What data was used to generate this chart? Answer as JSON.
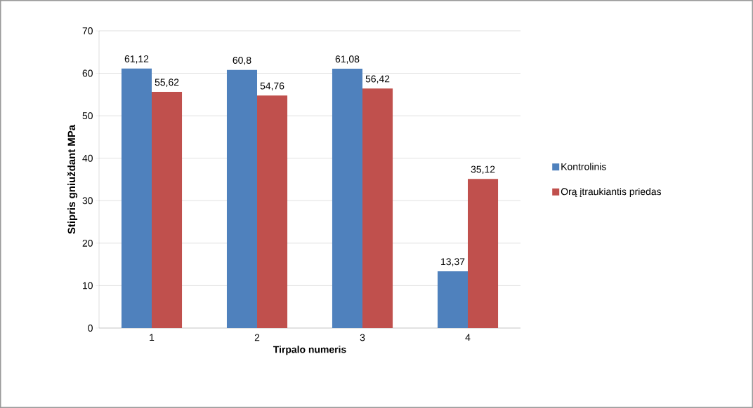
{
  "chart_data": {
    "type": "bar",
    "xlabel": "Tirpalo numeris",
    "ylabel": "Stipris gniuždant MPa",
    "categories": [
      "1",
      "2",
      "3",
      "4"
    ],
    "series": [
      {
        "name": "Kontrolinis",
        "color": "#4f81bd",
        "values": [
          61.12,
          60.8,
          61.08,
          13.37
        ],
        "value_labels": [
          "61,12",
          "60,8",
          "61,08",
          "13,37"
        ]
      },
      {
        "name": "Orą įtraukiantis priedas",
        "color": "#c0504d",
        "values": [
          55.62,
          54.76,
          56.42,
          35.12
        ],
        "value_labels": [
          "55,62",
          "54,76",
          "56,42",
          "35,12"
        ]
      }
    ],
    "ylim": [
      0,
      70
    ],
    "yticks": [
      0,
      10,
      20,
      30,
      40,
      50,
      60,
      70
    ],
    "grid": "y",
    "legend": "right"
  }
}
